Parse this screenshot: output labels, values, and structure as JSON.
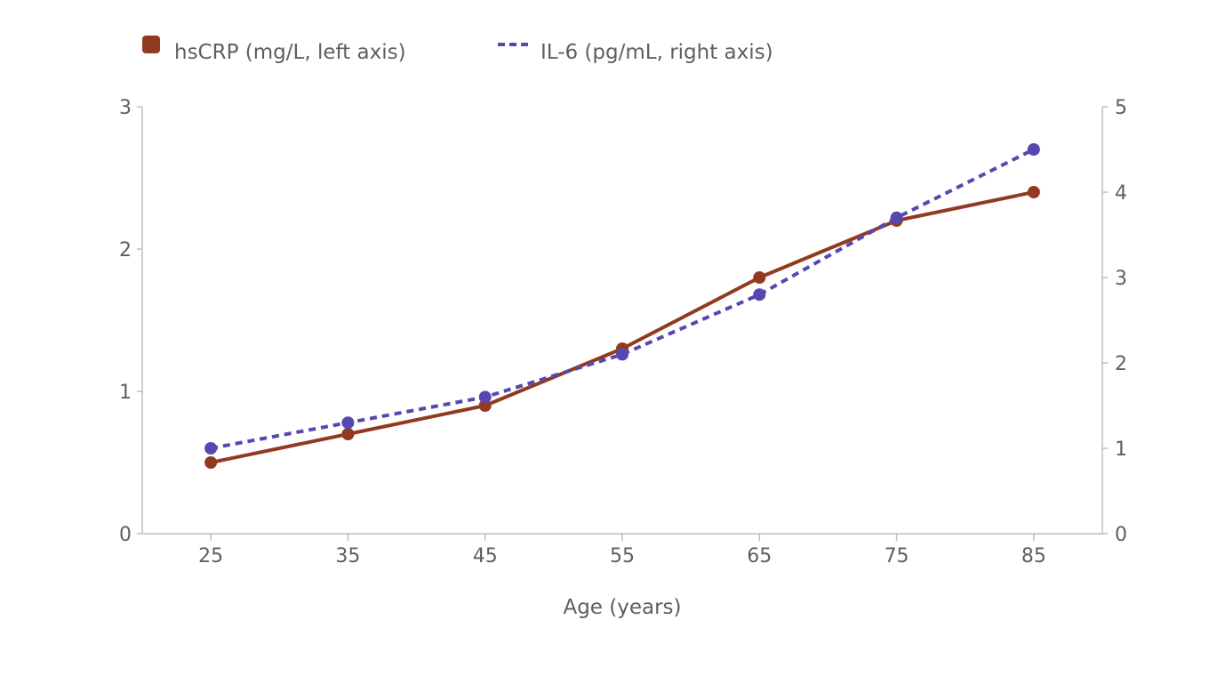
{
  "colors": {
    "hscrp": "#923a20",
    "il6": "#5648b0",
    "axis": "#bdbdbd",
    "text": "#5f5f5f"
  },
  "chart_data": {
    "type": "line",
    "x": [
      25,
      35,
      45,
      55,
      65,
      75,
      85
    ],
    "xlabel": "Age (years)",
    "xlim": [
      20,
      90
    ],
    "x_ticks": [
      "25",
      "35",
      "45",
      "55",
      "65",
      "75",
      "85"
    ],
    "ylim_left": [
      0,
      3
    ],
    "y_ticks_left": [
      "0",
      "1",
      "2",
      "3"
    ],
    "ylim_right": [
      0,
      5
    ],
    "y_ticks_right": [
      "0",
      "1",
      "2",
      "3",
      "4",
      "5"
    ],
    "grid": false,
    "legend_position": "top-left",
    "series": [
      {
        "name": "hsCRP (mg/L, left axis)",
        "axis": "left",
        "line_style": "solid",
        "color": "#923a20",
        "values": [
          0.5,
          0.7,
          0.9,
          1.3,
          1.8,
          2.2,
          2.4
        ]
      },
      {
        "name": "IL-6 (pg/mL, right axis)",
        "axis": "right",
        "line_style": "dashed",
        "color": "#5648b0",
        "values": [
          1.0,
          1.3,
          1.6,
          2.1,
          2.8,
          3.7,
          4.5
        ]
      }
    ]
  }
}
